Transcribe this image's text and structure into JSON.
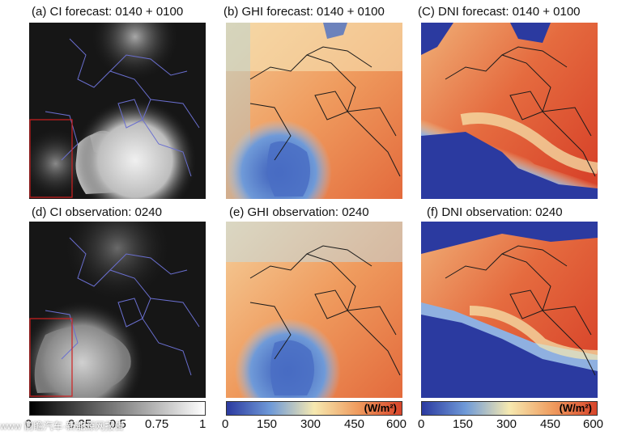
{
  "titles": {
    "a": "(a) CI forecast: 0140 + 0100",
    "b": "(b) GHI forecast: 0140 + 0100",
    "c": "(C) DNI forecast: 0140 + 0100",
    "d": "(d) CI observation: 0240",
    "e": "(e) GHI observation: 0240",
    "f": "(f) DNI observation: 0240"
  },
  "colorbars": {
    "ci": {
      "ticks": [
        "0",
        "0.25",
        "0.5",
        "0.75",
        "1"
      ]
    },
    "ghi": {
      "unit": "(W/m²)",
      "ticks": [
        "0",
        "150",
        "300",
        "450",
        "600"
      ]
    },
    "dni": {
      "unit": "(W/m²)",
      "ticks": [
        "0",
        "150",
        "300",
        "450",
        "600"
      ]
    }
  },
  "watermark": "www 前瞻汽车·新能源网报告",
  "colors": {
    "ci_dark": "#151515",
    "ci_bright": "#e8e8e8",
    "border_blue": "#6a6fd0",
    "highlight_box": "#d02020",
    "heat_low": "#2b3aa0",
    "heat_mid": "#f6e9b0",
    "heat_high": "#e0452a"
  }
}
